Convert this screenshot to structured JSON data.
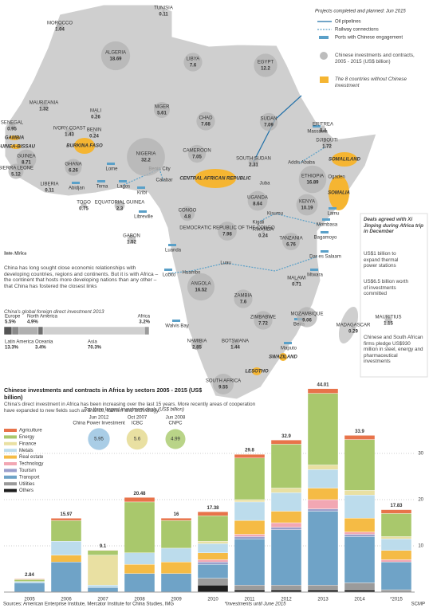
{
  "header": {
    "title": "Into Africa",
    "intro": "China has long sought close economic relationships with developing countries, regions and continents. But it is with Africa – the continent that hosts more developing nations than any other – that China has fostered the closest links"
  },
  "map": {
    "legend": {
      "title": "Projects completed and planned: Jun 2015",
      "items": [
        "Oil pipelines",
        "Railway connections",
        "Ports with Chinese engagement",
        "Chinese investments and contracts, 2005 - 2015 (US$ billion)",
        "The 8 countries without Chinese investment"
      ]
    },
    "countries": [
      {
        "name": "TUNISIA",
        "value": 0.11
      },
      {
        "name": "MOROCCO",
        "value": 1.04
      },
      {
        "name": "ALGERIA",
        "value": 18.69
      },
      {
        "name": "LIBYA",
        "value": 7.6
      },
      {
        "name": "EGYPT",
        "value": 12.2
      },
      {
        "name": "MAURITANIA",
        "value": 1.32
      },
      {
        "name": "MALI",
        "value": 0.26
      },
      {
        "name": "NIGER",
        "value": 5.61
      },
      {
        "name": "CHAD",
        "value": 7.68
      },
      {
        "name": "SUDAN",
        "value": 7.09
      },
      {
        "name": "ERITREA",
        "value": 0.4
      },
      {
        "name": "SENEGAL",
        "value": 0.95
      },
      {
        "name": "IVORY COAST",
        "value": 1.43
      },
      {
        "name": "BENIN",
        "value": 0.24
      },
      {
        "name": "DJIBOUTI",
        "value": 1.72
      },
      {
        "name": "GUINEA",
        "value": 8.71
      },
      {
        "name": "SIERRA LEONE",
        "value": 5.12
      },
      {
        "name": "GHANA",
        "value": 6.26
      },
      {
        "name": "NIGERIA",
        "value": 32.2
      },
      {
        "name": "CAMEROON",
        "value": 7.05
      },
      {
        "name": "SOUTH SUDAN",
        "value": 2.31
      },
      {
        "name": "ETHIOPIA",
        "value": 16.89
      },
      {
        "name": "LIBERIA",
        "value": 0.11
      },
      {
        "name": "TOGO",
        "value": 0.75
      },
      {
        "name": "EQUATORIAL GUINEA",
        "value": 2.3
      },
      {
        "name": "UGANDA",
        "value": 8.64
      },
      {
        "name": "CONGO",
        "value": 4.8
      },
      {
        "name": "KENYA",
        "value": 10.19
      },
      {
        "name": "DEMOCRATIC REPUBLIC OF THE CONGO",
        "value": 7.98
      },
      {
        "name": "RWANDA",
        "value": 0.24
      },
      {
        "name": "GABON",
        "value": 1.52
      },
      {
        "name": "TANZANIA",
        "value": 6.76
      },
      {
        "name": "ANGOLA",
        "value": 16.52
      },
      {
        "name": "MALAWI",
        "value": 0.71
      },
      {
        "name": "ZAMBIA",
        "value": 7.6
      },
      {
        "name": "ZIMBABWE",
        "value": 7.72
      },
      {
        "name": "MOZAMBIQUE",
        "value": 9.06
      },
      {
        "name": "MADAGASCAR",
        "value": 0.29
      },
      {
        "name": "MAURITIUS",
        "value": 1.15
      },
      {
        "name": "NAMIBIA",
        "value": 2.85
      },
      {
        "name": "BOTSWANA",
        "value": 1.44
      },
      {
        "name": "SOUTH AFRICA",
        "value": 9.55
      }
    ],
    "no_investment": [
      "GAMBIA",
      "GUINEA-BISSAU",
      "BURKINA FASO",
      "CENTRAL AFRICAN REPUBLIC",
      "SOMALILAND",
      "SOMALIA",
      "SWAZILAND",
      "LESOTHO"
    ],
    "places": [
      "Massawa",
      "Addis Ababa",
      "Ogaden",
      "Juba",
      "Kisumu",
      "Kigali",
      "Mombasa",
      "Lamu",
      "Bagamoyo",
      "Dar es Salaam",
      "Mtwara",
      "Luau",
      "Huambo",
      "Lobito",
      "Luanda",
      "Libreville",
      "Kribi",
      "Calabar",
      "Benin City",
      "Lagos",
      "Lome",
      "Tema",
      "Abidjan",
      "Walvis Bay",
      "Beira",
      "Maputo"
    ]
  },
  "deals_box": {
    "title": "Deals agreed with Xi Jinping during Africa trip in December",
    "items": [
      "US$1 billion to expand thermal power stations",
      "US$6.5 billion worth of investments committed",
      "Chinese and South African firms pledge US$930 million in steel, energy and pharmaceutical investments"
    ]
  },
  "chart_data": [
    {
      "type": "share_bar",
      "title": "China's global foreign direct investment 2013",
      "categories": [
        "Europe",
        "North America",
        "Latin America",
        "Oceania",
        "Asia",
        "Africa"
      ],
      "values": [
        5.5,
        4.9,
        13.3,
        3.4,
        70.3,
        3.2
      ],
      "value_labels": [
        "5.5%",
        "4.9%",
        "13.3%",
        "3.4%",
        "70.3%",
        "3.2%"
      ],
      "colors": [
        "#555555",
        "#8a8a8a",
        "#b0b0b0",
        "#6e6e6e",
        "#cfcfcf",
        "#9a9a9a"
      ]
    },
    {
      "type": "stacked_bar",
      "title": "Chinese investments and contracts in Africa by sectors 2005 - 2015 (US$ billion)",
      "subtitle": "China's direct investment in Africa has been increasing over the last 15 years. More recently areas of cooperation have expanded to new fields such as finance, tourism and technology.",
      "categories": [
        "2005",
        "2006",
        "2007",
        "2008",
        "2009",
        "2010",
        "2011",
        "2012",
        "2013",
        "2014",
        "*2015"
      ],
      "totals": [
        2.84,
        15.97,
        9.1,
        20.48,
        16,
        17.38,
        29.8,
        32.9,
        44.01,
        33.9,
        17.83
      ],
      "ylim": [
        0,
        45
      ],
      "yticks": [
        10,
        20,
        30
      ],
      "grid": true,
      "note": "*Investments until June 2015",
      "series": [
        {
          "name": "Others",
          "color": "#1e1e1e",
          "values": [
            0,
            0,
            0,
            0,
            0,
            1.5,
            0.5,
            0.5,
            0.5,
            0.5,
            0
          ]
        },
        {
          "name": "Utilities",
          "color": "#9b9b9b",
          "values": [
            0,
            0,
            0,
            0,
            0,
            1.5,
            1,
            1,
            1,
            1.5,
            0.5
          ]
        },
        {
          "name": "Transport",
          "color": "#6fa3c7",
          "values": [
            2,
            6.5,
            1,
            4,
            4,
            3,
            10,
            12,
            16,
            10,
            6
          ]
        },
        {
          "name": "Tourism",
          "color": "#9b9fcb",
          "values": [
            0,
            0,
            0,
            0,
            0,
            0.5,
            0.5,
            0.5,
            0.5,
            0.5,
            0
          ]
        },
        {
          "name": "Technology",
          "color": "#f2a7b3",
          "values": [
            0,
            0,
            0,
            0,
            0,
            0.5,
            0.5,
            1,
            2,
            0.5,
            0.5
          ]
        },
        {
          "name": "Real estate",
          "color": "#f5bb45",
          "values": [
            0,
            1.5,
            0,
            2,
            2.5,
            1.5,
            3,
            2.5,
            2.5,
            3,
            2
          ]
        },
        {
          "name": "Metals",
          "color": "#bcdcec",
          "values": [
            0.3,
            3,
            0.5,
            2.5,
            3,
            2,
            4,
            4,
            4,
            5,
            2.5
          ]
        },
        {
          "name": "Finance",
          "color": "#e9e0a2",
          "values": [
            0,
            0,
            6.5,
            0,
            0,
            0.5,
            0.5,
            1,
            1,
            1,
            0.5
          ]
        },
        {
          "name": "Energy",
          "color": "#a9c86c",
          "values": [
            0.4,
            4.5,
            1,
            11,
            6,
            5.5,
            9,
            9.5,
            15.5,
            11,
            5
          ]
        },
        {
          "name": "Agriculture",
          "color": "#e8734a",
          "values": [
            0.14,
            0.47,
            0.1,
            0.98,
            0.5,
            0.88,
            0.8,
            0.9,
            1.01,
            0.9,
            0.83
          ]
        }
      ]
    },
    {
      "type": "bubble",
      "title": "Top three largest investment deals (US$ billion)",
      "categories": [
        "China Power Investment",
        "ICBC",
        "CNPC"
      ],
      "dates": [
        "Jun 2012",
        "Oct 2007",
        "Jun 2008"
      ],
      "values": [
        5.95,
        5.6,
        4.99
      ],
      "colors": [
        "#a9cde6",
        "#e9e0a2",
        "#b9d488"
      ]
    }
  ],
  "footer": {
    "sources": "Sources: American Enterprise Institute, Mercator Institute for China Studies, IMG",
    "credit": "SCMP"
  }
}
